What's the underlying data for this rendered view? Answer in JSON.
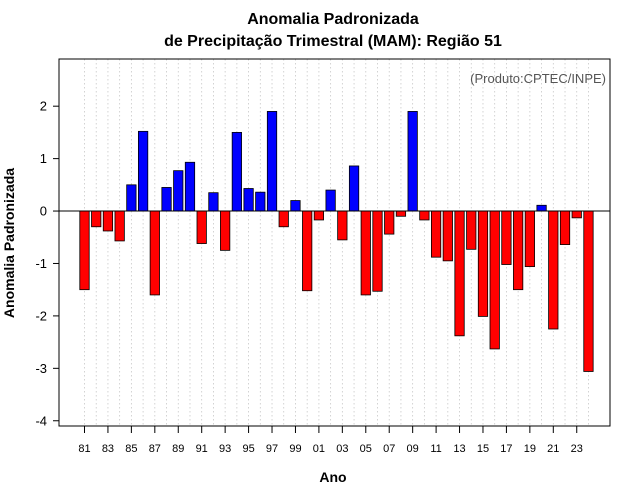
{
  "chart_data": {
    "type": "bar",
    "title": "Anomalia Padronizada",
    "subtitle": "de Precipitação Trimestral (MAM): Região 51",
    "xlabel": "Ano",
    "ylabel": "Anomalia Padronizada",
    "source_note": "(Produto:CPTEC/INPE)",
    "ylim": [
      -4.1,
      2.9
    ],
    "yticks": [
      -4,
      -3,
      -2,
      -1,
      0,
      1,
      2
    ],
    "grid": "vertical dotted",
    "categories": [
      "81",
      "82",
      "83",
      "84",
      "85",
      "86",
      "87",
      "88",
      "89",
      "90",
      "91",
      "92",
      "93",
      "94",
      "95",
      "96",
      "97",
      "98",
      "99",
      "00",
      "01",
      "02",
      "03",
      "04",
      "05",
      "06",
      "07",
      "08",
      "09",
      "10",
      "11",
      "12",
      "13",
      "14",
      "15",
      "16",
      "17",
      "18",
      "19",
      "20",
      "21",
      "22",
      "23",
      "24"
    ],
    "xtick_labels": [
      "81",
      "83",
      "85",
      "87",
      "89",
      "91",
      "93",
      "95",
      "97",
      "99",
      "01",
      "03",
      "05",
      "07",
      "09",
      "11",
      "13",
      "15",
      "17",
      "19",
      "21",
      "23"
    ],
    "values": [
      -1.5,
      -0.3,
      -0.38,
      -0.57,
      0.5,
      1.52,
      -1.6,
      0.45,
      0.77,
      0.93,
      -0.62,
      0.35,
      -0.75,
      1.5,
      0.43,
      0.36,
      1.9,
      -0.3,
      0.2,
      -1.52,
      -0.17,
      0.4,
      -0.55,
      0.86,
      -1.6,
      -1.53,
      -0.44,
      -0.1,
      1.9,
      -0.17,
      -0.88,
      -0.95,
      -2.38,
      -0.73,
      -2.01,
      -2.63,
      -1.02,
      -1.5,
      -1.06,
      0.11,
      -2.25,
      -0.64,
      -0.13,
      -3.06
    ],
    "colors": {
      "positive": "#0000ff",
      "negative": "#ff0000",
      "outline": "#000000",
      "grid": "#c8c8c8"
    }
  }
}
